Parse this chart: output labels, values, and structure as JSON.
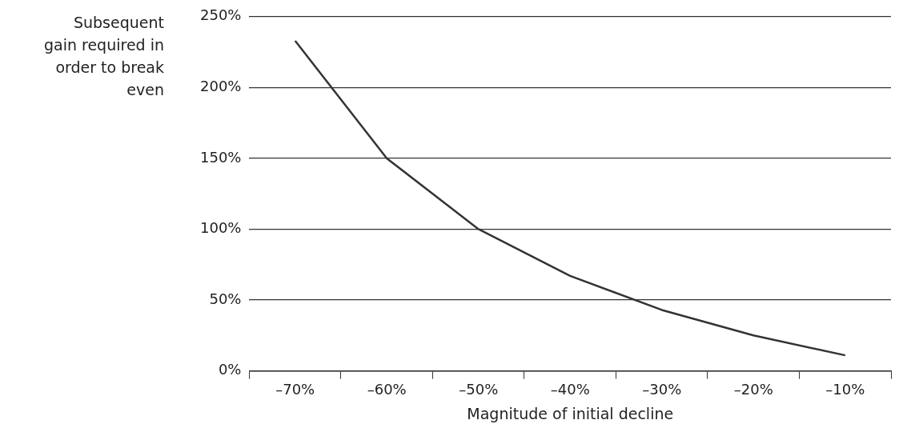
{
  "chart_data": {
    "type": "line",
    "xlabel": "Magnitude of initial decline",
    "ylabel": "Subsequent gain required in order to break even",
    "categories": [
      "–70%",
      "–60%",
      "–50%",
      "–40%",
      "–30%",
      "–20%",
      "–10%"
    ],
    "series": [
      {
        "color": "#333333",
        "values": [
          233,
          150,
          100,
          67,
          43,
          25,
          11
        ]
      }
    ],
    "ylim": [
      0,
      250
    ],
    "yticks": [
      {
        "value": 0,
        "label": "0%"
      },
      {
        "value": 50,
        "label": "50%"
      },
      {
        "value": 100,
        "label": "100%"
      },
      {
        "value": 150,
        "label": "150%"
      },
      {
        "value": 200,
        "label": "200%"
      },
      {
        "value": 250,
        "label": "250%"
      }
    ],
    "grid": "y",
    "legend": false,
    "marker": "none",
    "line_style": "solid"
  }
}
